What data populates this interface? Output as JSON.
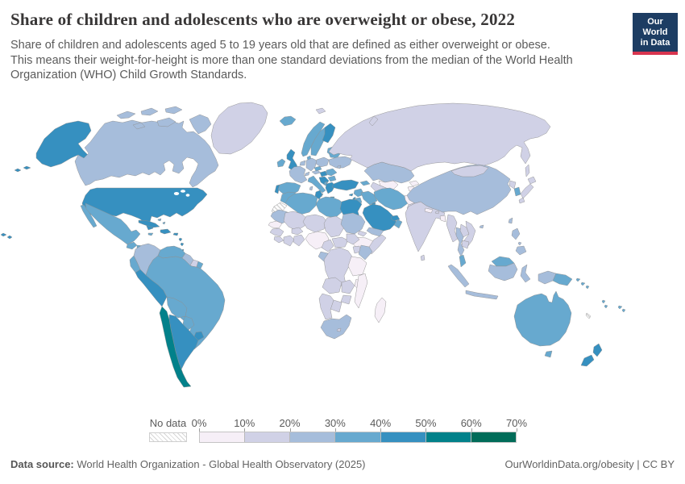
{
  "header": {
    "title": "Share of children and adolescents who are overweight or obese, 2022",
    "subtitle_line1": "Share of children and adolescents aged 5 to 19 years old that are defined as either overweight or obese.",
    "subtitle_line2": "This means their weight-for-height is more than one standard deviations from the median of the World Health",
    "subtitle_line3": "Organization (WHO) Child Growth Standards."
  },
  "logo": {
    "line1": "Our World",
    "line2": "in Data",
    "bg_color": "#1d3d63",
    "stripe_color": "#d8354f"
  },
  "legend": {
    "no_data_label": "No data",
    "tick_labels": [
      "0%",
      "10%",
      "20%",
      "30%",
      "40%",
      "50%",
      "60%",
      "70%"
    ],
    "bin_colors": [
      "#f6eff7",
      "#d0d1e6",
      "#a6bddb",
      "#67a9cf",
      "#3690c0",
      "#02818a",
      "#016c59"
    ]
  },
  "footer": {
    "source_label": "Data source:",
    "source_text": " World Health Organization - Global Health Observatory (2025)",
    "right_text": "OurWorldinData.org/obesity | CC BY"
  },
  "map": {
    "fills": {
      "usa": 4,
      "canada": 2,
      "arctic-islands": 2,
      "greenland": 1,
      "mexico": 3,
      "baja": 3,
      "guatemala": 3,
      "honduras": 3,
      "nicaragua": 3,
      "costa-rica": 4,
      "panama": 4,
      "cuba": 4,
      "jamaica": 3,
      "hispaniola": 4,
      "bahamas": 3,
      "caribbean": 4,
      "colombia": 2,
      "venezuela": 3,
      "guyana": 2,
      "suriname": 1,
      "french-guiana": 3,
      "ecuador": 3,
      "peru": 4,
      "brazil": 3,
      "bolivia": 3,
      "paraguay": 3,
      "uruguay": 4,
      "chile": 5,
      "argentina": 4,
      "iceland": 3,
      "ireland": 3,
      "uk": 4,
      "norway": 3,
      "sweden": 3,
      "finland": 4,
      "denmark": 3,
      "baltics": 3,
      "france": 2,
      "spain": 3,
      "portugal": 4,
      "germany": 2,
      "benelux": 2,
      "italy": 3,
      "sicily": 3,
      "sardinia": 2,
      "switzerland": 2,
      "austria": 2,
      "czechia": 3,
      "poland": 2,
      "hungary": 4,
      "balkans": 4,
      "romania": 3,
      "bulgaria": 3,
      "greece": 4,
      "albania": 3,
      "crete": 4,
      "ukraine": 2,
      "belarus": 3,
      "moldova": 2,
      "russia": 1,
      "sakhalin": 1,
      "novaya-zemlya": 1,
      "svalbard": 1,
      "kazakhstan": 2,
      "uzbekistan": 0,
      "turkmenistan": 1,
      "kyrgyzstan": 0,
      "tajikistan": 0,
      "caucasus": 3,
      "turkey": 4,
      "cyprus": 4,
      "syria": 3,
      "israel": 4,
      "jordan": 3,
      "iraq": 3,
      "iran": 3,
      "afghanistan": 0,
      "pakistan": 1,
      "kuwait": 4,
      "saudi-arabia": 4,
      "qatar-uae": 4,
      "oman": 3,
      "yemen": 2,
      "morocco": 3,
      "western-sahara": "nodata",
      "algeria": 3,
      "tunisia": 4,
      "libya": 3,
      "egypt": 4,
      "mauritania": 2,
      "senegal": 0,
      "guinea": 1,
      "sierra-leone": 1,
      "mali": 1,
      "burkina-faso": 1,
      "ivory-coast": 1,
      "ghana": 1,
      "niger": 1,
      "nigeria": 0,
      "chad": 1,
      "sudan": 2,
      "eritrea": 1,
      "ethiopia": 0,
      "somalia": 1,
      "cameroon": 1,
      "car": 1,
      "south-sudan": 1,
      "uganda": 1,
      "kenya": 2,
      "gabon-congo": 2,
      "drc": 1,
      "tanzania": 0,
      "angola": 1,
      "zambia": 1,
      "malawi": 0,
      "mozambique": 0,
      "zimbabwe": 1,
      "botswana": 1,
      "namibia": 1,
      "south-africa": 2,
      "lesotho": 1,
      "madagascar": 0,
      "india": 1,
      "sri-lanka": 1,
      "nepal": 0,
      "bhutan": 1,
      "bangladesh": 0,
      "myanmar": 1,
      "thailand": 2,
      "laos": 1,
      "vietnam": 1,
      "cambodia": 1,
      "malaysia": 3,
      "sumatra": 2,
      "java": 2,
      "borneo-malaysia": 3,
      "borneo-indonesia": 2,
      "sulawesi": 2,
      "philippines": 2,
      "china": 2,
      "hainan": 2,
      "mongolia": 1,
      "north-korea": 1,
      "south-korea": 3,
      "japan": 1,
      "taiwan": 2,
      "papua-indonesia": 2,
      "papua-new-guinea": 3,
      "solomon": 3,
      "vanuatu": 3,
      "fiji": 3,
      "new-caledonia": "nodata",
      "australia": 3,
      "tasmania": 3,
      "new-zealand": 4,
      "hawaii": 4
    }
  },
  "chart_data": {
    "type": "heatmap",
    "subtype": "choropleth-world-map",
    "title": "Share of children and adolescents who are overweight or obese, 2022",
    "unit": "% of children and adolescents aged 5 to 19",
    "year": 2022,
    "legend_position": "bottom",
    "bin_ranges": [
      "0-10%",
      "10-20%",
      "20-30%",
      "30-40%",
      "40-50%",
      "50-60%",
      "60-70%"
    ],
    "bin_colors": [
      "#f6eff7",
      "#d0d1e6",
      "#a6bddb",
      "#67a9cf",
      "#3690c0",
      "#02818a",
      "#016c59"
    ],
    "no_data_regions": [
      "Western Sahara",
      "New Caledonia"
    ],
    "values_by_country_range": {
      "United States": "40-50%",
      "Canada": "20-30%",
      "Greenland": "10-20%",
      "Mexico": "30-40%",
      "Guatemala": "30-40%",
      "Cuba": "40-50%",
      "Colombia": "20-30%",
      "Venezuela": "30-40%",
      "Ecuador": "30-40%",
      "Peru": "40-50%",
      "Brazil": "30-40%",
      "Bolivia": "30-40%",
      "Paraguay": "30-40%",
      "Chile": "50-60%",
      "Argentina": "40-50%",
      "Uruguay": "40-50%",
      "United Kingdom": "40-50%",
      "Ireland": "30-40%",
      "Iceland": "30-40%",
      "Norway": "30-40%",
      "Sweden": "30-40%",
      "Finland": "40-50%",
      "France": "20-30%",
      "Germany": "20-30%",
      "Spain": "30-40%",
      "Portugal": "40-50%",
      "Italy": "30-40%",
      "Greece": "40-50%",
      "Hungary": "40-50%",
      "Poland": "20-30%",
      "Ukraine": "20-30%",
      "Russia": "10-20%",
      "Turkey": "40-50%",
      "Egypt": "40-50%",
      "Saudi Arabia": "40-50%",
      "Libya": "30-40%",
      "Algeria": "30-40%",
      "Morocco": "30-40%",
      "Tunisia": "40-50%",
      "Iran": "30-40%",
      "Iraq": "30-40%",
      "Kazakhstan": "20-30%",
      "Uzbekistan": "0-10%",
      "Afghanistan": "0-10%",
      "Pakistan": "10-20%",
      "India": "10-20%",
      "Nepal": "0-10%",
      "Bangladesh": "0-10%",
      "Myanmar": "10-20%",
      "Thailand": "20-30%",
      "Vietnam": "10-20%",
      "Malaysia": "30-40%",
      "Indonesia": "20-30%",
      "Philippines": "20-30%",
      "China": "20-30%",
      "Mongolia": "10-20%",
      "Japan": "10-20%",
      "South Korea": "30-40%",
      "North Korea": "10-20%",
      "Australia": "30-40%",
      "New Zealand": "40-50%",
      "Papua New Guinea": "30-40%",
      "Nigeria": "0-10%",
      "Niger": "10-20%",
      "Chad": "10-20%",
      "Sudan": "20-30%",
      "Ethiopia": "0-10%",
      "Somalia": "10-20%",
      "Kenya": "20-30%",
      "Tanzania": "0-10%",
      "Democratic Republic of Congo": "10-20%",
      "Angola": "10-20%",
      "Zambia": "10-20%",
      "Zimbabwe": "10-20%",
      "Mozambique": "0-10%",
      "Madagascar": "0-10%",
      "Namibia": "10-20%",
      "Botswana": "10-20%",
      "South Africa": "20-30%",
      "Senegal": "0-10%",
      "Mali": "10-20%",
      "Mauritania": "20-30%",
      "Guinea": "10-20%",
      "Ghana": "10-20%",
      "Cameroon": "10-20%",
      "Yemen": "20-30%",
      "Oman": "30-40%",
      "Syria": "30-40%",
      "Jordan": "30-40%",
      "Israel": "40-50%"
    }
  }
}
